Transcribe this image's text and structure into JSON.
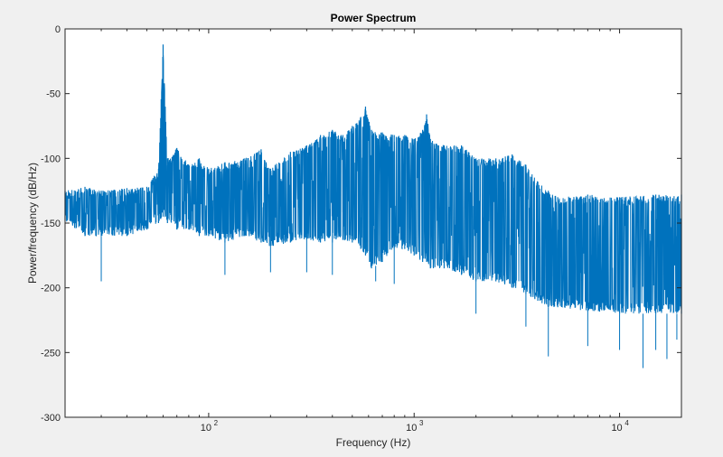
{
  "chart_data": {
    "type": "line",
    "title": "Power Spectrum",
    "xlabel": "Frequency (Hz)",
    "ylabel": "Power/frequency (dB/Hz)",
    "xscale": "log",
    "xlim": [
      20,
      20000
    ],
    "ylim": [
      -300,
      0
    ],
    "x_ticks": [
      100,
      1000,
      10000
    ],
    "x_tick_labels": [
      "10",
      "10",
      "10"
    ],
    "x_tick_exponents": [
      "2",
      "3",
      "4"
    ],
    "y_ticks": [
      0,
      -50,
      -100,
      -150,
      -200,
      -250,
      -300
    ],
    "y_tick_labels": [
      "0",
      "-50",
      "-100",
      "-150",
      "-200",
      "-250",
      "-300"
    ],
    "grid": false,
    "series": [
      {
        "color": "#0072bd",
        "envelope": {
          "x": [
            20,
            25,
            30,
            40,
            50,
            57,
            60,
            63,
            70,
            80,
            90,
            100,
            120,
            150,
            180,
            200,
            250,
            300,
            350,
            400,
            450,
            500,
            550,
            580,
            620,
            700,
            800,
            900,
            1000,
            1100,
            1150,
            1200,
            1400,
            1700,
            2000,
            2500,
            3000,
            3500,
            4000,
            4500,
            5000,
            7000,
            10000,
            15000,
            20000
          ],
          "upper": [
            -125,
            -122,
            -125,
            -123,
            -122,
            -108,
            -12,
            -100,
            -92,
            -105,
            -100,
            -108,
            -103,
            -100,
            -93,
            -108,
            -95,
            -90,
            -82,
            -78,
            -82,
            -75,
            -68,
            -60,
            -78,
            -80,
            -82,
            -82,
            -85,
            -78,
            -66,
            -85,
            -90,
            -90,
            -100,
            -100,
            -97,
            -105,
            -118,
            -125,
            -130,
            -128,
            -130,
            -128,
            -128
          ],
          "lower": [
            -148,
            -160,
            -160,
            -160,
            -155,
            -150,
            -145,
            -150,
            -155,
            -155,
            -160,
            -160,
            -165,
            -160,
            -165,
            -168,
            -165,
            -163,
            -165,
            -165,
            -163,
            -165,
            -170,
            -175,
            -185,
            -180,
            -170,
            -170,
            -175,
            -180,
            -180,
            -185,
            -185,
            -190,
            -195,
            -195,
            -200,
            -205,
            -210,
            -215,
            -215,
            -218,
            -220,
            -220,
            -220
          ],
          "dips": [
            [
              30,
              -195
            ],
            [
              120,
              -190
            ],
            [
              200,
              -188
            ],
            [
              300,
              -188
            ],
            [
              400,
              -190
            ],
            [
              650,
              -195
            ],
            [
              800,
              -197
            ],
            [
              2000,
              -220
            ],
            [
              3500,
              -230
            ],
            [
              4500,
              -253
            ],
            [
              7000,
              -245
            ],
            [
              10000,
              -248
            ],
            [
              13000,
              -262
            ],
            [
              15000,
              -248
            ],
            [
              17000,
              -255
            ],
            [
              19000,
              -240
            ]
          ]
        }
      }
    ]
  }
}
